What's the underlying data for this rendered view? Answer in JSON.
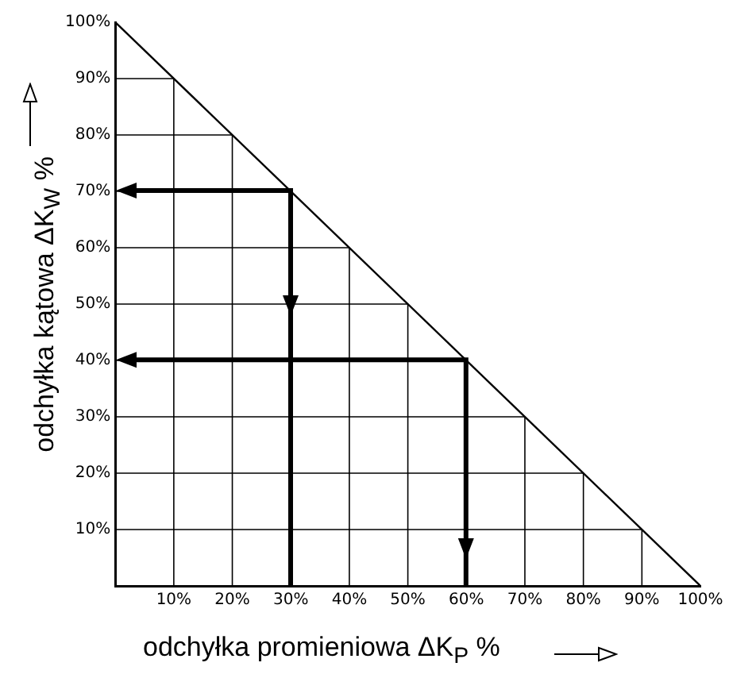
{
  "chart_data": {
    "type": "line",
    "xlabel": "odchyłka promieniowa  ΔK$_{P}$ %",
    "ylabel": "odchyłka kątowa  ΔK$_{W}$ %",
    "series": [
      {
        "color": "#000000",
        "x": [
          0,
          100
        ],
        "values": [
          100,
          0
        ]
      }
    ],
    "xlim": [
      0,
      100
    ],
    "ylim": [
      0,
      100
    ],
    "xticks": [
      {
        "value": 0,
        "label": null
      },
      {
        "value": 10,
        "label": "10%"
      },
      {
        "value": 20,
        "label": "20%"
      },
      {
        "value": 30,
        "label": "30%"
      },
      {
        "value": 40,
        "label": "40%"
      },
      {
        "value": 50,
        "label": "50%"
      },
      {
        "value": 60,
        "label": "60%"
      },
      {
        "value": 70,
        "label": "70%"
      },
      {
        "value": 80,
        "label": "80%"
      },
      {
        "value": 90,
        "label": "90%"
      },
      {
        "value": 100,
        "label": "100%"
      }
    ],
    "yticks": [
      {
        "value": 0,
        "label": null
      },
      {
        "value": 10,
        "label": "10%"
      },
      {
        "value": 20,
        "label": "20%"
      },
      {
        "value": 30,
        "label": "30%"
      },
      {
        "value": 40,
        "label": "40%"
      },
      {
        "value": 50,
        "label": "50%"
      },
      {
        "value": 60,
        "label": "60%"
      },
      {
        "value": 70,
        "label": "70%"
      },
      {
        "value": 80,
        "label": "80%"
      },
      {
        "value": 90,
        "label": "90%"
      },
      {
        "value": 100,
        "label": "100%"
      }
    ],
    "grid": true,
    "legend": false,
    "marker": "none",
    "line_style": "solid"
  }
}
